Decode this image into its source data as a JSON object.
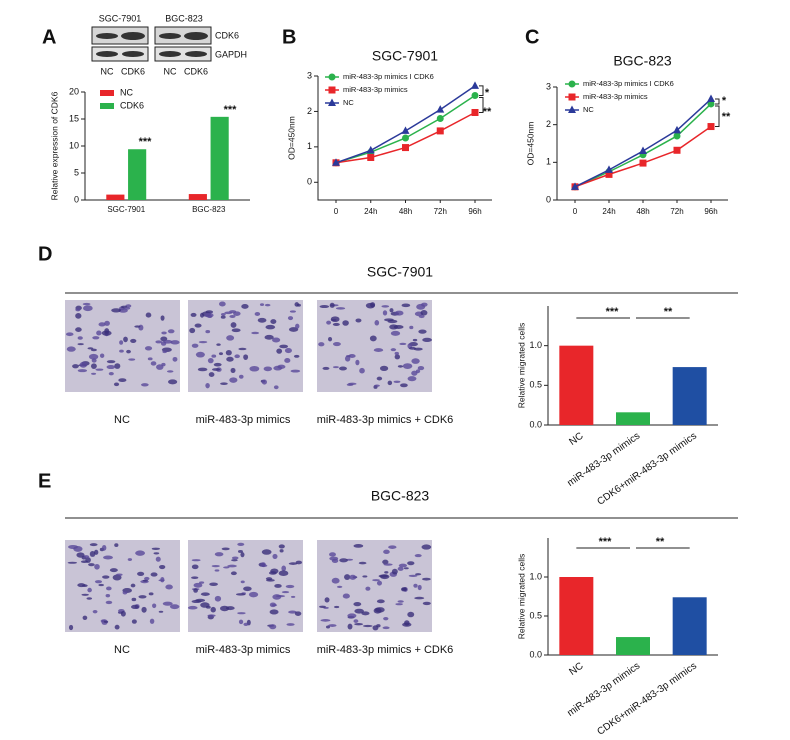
{
  "figure": {
    "letters": [
      "A",
      "B",
      "C",
      "D",
      "E"
    ],
    "blot": {
      "cells": [
        "SGC-7901",
        "BGC-823"
      ],
      "proteins": [
        "CDK6",
        "GAPDH"
      ],
      "lanes": [
        "NC",
        "CDK6",
        "NC",
        "CDK6"
      ]
    },
    "sections": [
      "SGC-7901",
      "BGC-823"
    ],
    "captions_d": [
      "NC",
      "miR-483-3p mimics",
      "miR-483-3p mimics + CDK6"
    ],
    "captions_e": [
      "NC",
      "miR-483-3p mimics",
      "miR-483-3p mimics + CDK6"
    ]
  },
  "chart_data": [
    {
      "type": "bar",
      "y_label": "Relative expression of CDK6",
      "categories": [
        "SGC-7901",
        "BGC-823"
      ],
      "series": [
        {
          "name": "NC",
          "color": "#e8262a",
          "values": [
            1.0,
            1.1
          ]
        },
        {
          "name": "CDK6",
          "color": "#2bb24c",
          "values": [
            9.4,
            15.4
          ]
        }
      ],
      "ylim": [
        0,
        20
      ],
      "yticks": [
        0,
        5,
        10,
        15,
        20
      ],
      "annotations": [
        "***",
        "***"
      ]
    },
    {
      "type": "line",
      "title": "SGC-7901",
      "y_label": "OD=450nm",
      "categories": [
        "0",
        "24h",
        "48h",
        "72h",
        "96h"
      ],
      "series": [
        {
          "name": "miR-483-3p mimics I CDK6",
          "color": "#2bb24c",
          "marker": "circle",
          "values": [
            0.55,
            0.85,
            1.25,
            1.8,
            2.45
          ]
        },
        {
          "name": "miR-483-3p mimics",
          "color": "#e8262a",
          "marker": "square",
          "values": [
            0.55,
            0.7,
            0.98,
            1.45,
            1.97
          ]
        },
        {
          "name": "NC",
          "color": "#2b3a9a",
          "marker": "triangle",
          "values": [
            0.55,
            0.9,
            1.45,
            2.05,
            2.72
          ]
        }
      ],
      "ylim": [
        -0.5,
        3
      ],
      "yticks": [
        0,
        1,
        2,
        3
      ],
      "annotations": [
        "*",
        "**"
      ]
    },
    {
      "type": "line",
      "title": "BGC-823",
      "y_label": "OD=450nm",
      "categories": [
        "0",
        "24h",
        "48h",
        "72h",
        "96h"
      ],
      "series": [
        {
          "name": "miR-483-3p mimics I CDK6",
          "color": "#2bb24c",
          "marker": "circle",
          "values": [
            0.35,
            0.75,
            1.2,
            1.7,
            2.55
          ]
        },
        {
          "name": "miR-483-3p mimics",
          "color": "#e8262a",
          "marker": "square",
          "values": [
            0.35,
            0.68,
            0.98,
            1.32,
            1.95
          ]
        },
        {
          "name": "NC",
          "color": "#2b3a9a",
          "marker": "triangle",
          "values": [
            0.35,
            0.8,
            1.3,
            1.85,
            2.68
          ]
        }
      ],
      "ylim": [
        0,
        3
      ],
      "yticks": [
        0,
        1,
        2,
        3
      ],
      "annotations": [
        "*",
        "**"
      ]
    },
    {
      "type": "bar",
      "y_label": "Relative migrated cells",
      "categories": [
        "NC",
        "miR-483-3p mimics",
        "CDK6+miR-483-3p mimics"
      ],
      "values": [
        1.0,
        0.16,
        0.73
      ],
      "colors": [
        "#e8262a",
        "#2bb24c",
        "#1f4fa3"
      ],
      "ylim": [
        0,
        1.5
      ],
      "yticks": [
        {
          "value": 0,
          "label": "0.0"
        },
        0.5,
        {
          "value": 1,
          "label": "1.0"
        }
      ],
      "annotations": [
        "***",
        "**"
      ]
    },
    {
      "type": "bar",
      "y_label": "Relative migrated cells",
      "categories": [
        "NC",
        "miR-483-3p mimics",
        "CDK6+miR-483-3p mimics"
      ],
      "values": [
        1.0,
        0.23,
        0.74
      ],
      "colors": [
        "#e8262a",
        "#2bb24c",
        "#1f4fa3"
      ],
      "ylim": [
        0,
        1.5
      ],
      "yticks": [
        {
          "value": 0,
          "label": "0.0"
        },
        0.5,
        {
          "value": 1,
          "label": "1.0"
        }
      ],
      "annotations": [
        "***",
        "**"
      ]
    }
  ]
}
